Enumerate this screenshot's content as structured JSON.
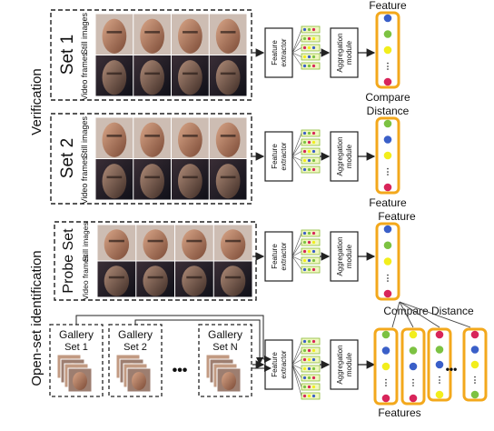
{
  "colors": {
    "feature_border": "#f3a81c",
    "dot_blue": "#3a5fc8",
    "dot_green": "#7cc242",
    "dot_yellow": "#f2ee1c",
    "dot_red": "#d8255a",
    "bar_fill": "#f0f7c0",
    "bar_border": "#8dbb3a",
    "photo_icon": "face-photo"
  },
  "sections": {
    "verification": "Verification",
    "open_set": "Open-set identification"
  },
  "verification": {
    "set1_title": "Set 1",
    "set2_title": "Set 2",
    "still_images": "Still images",
    "video_frames": "Video frames",
    "feature_extractor": "Feature extractor",
    "aggregation_module": "Aggregation module",
    "feature_label_top": "Feature",
    "compare_distance": "Compare Distance",
    "feature_label_bottom": "Feature"
  },
  "open_set": {
    "feature_top": "Feature",
    "probe_title": "Probe Set",
    "still_images": "Still images",
    "video_frames": "Video frames",
    "feature_extractor": "Feature extractor",
    "aggregation_module": "Aggregation module",
    "compare_distance": "Compare Distance",
    "features_bottom": "Features",
    "gallery_title": "Gallery",
    "gallery_set1": "Set 1",
    "gallery_set2": "Set 2",
    "gallery_setn": "Set N",
    "ellipsis": "•••"
  }
}
